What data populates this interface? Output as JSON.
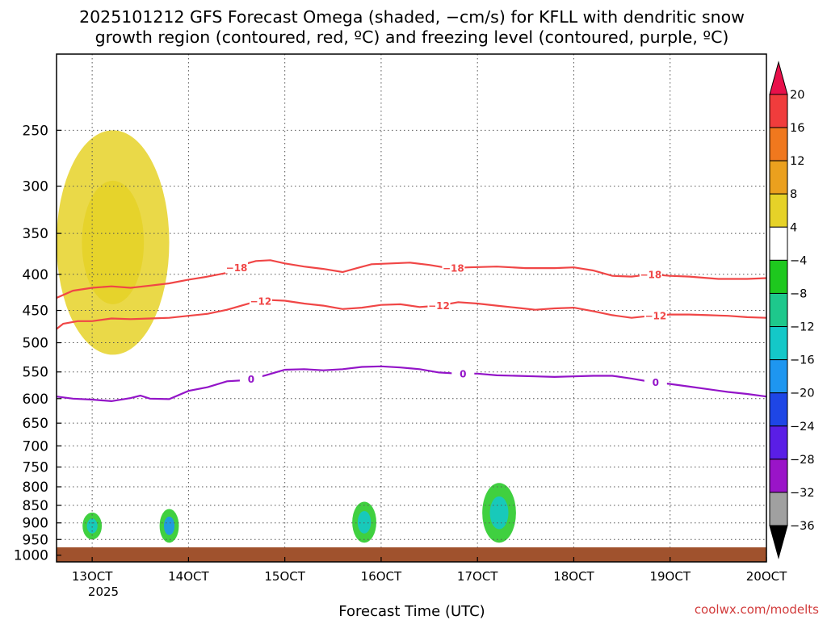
{
  "chart_data": {
    "type": "time-height",
    "title_lines": [
      "2025101212 GFS Forecast Omega (shaded, −cm/s) for KFLL with dendritic snow",
      "growth region (contoured, red, ºC) and freezing level (contoured, purple, ºC)"
    ],
    "xlabel": "Forecast Time (UTC)",
    "credit": "coolwx.com/modelts",
    "x_ticks": [
      "13OCT",
      "14OCT",
      "15OCT",
      "16OCT",
      "17OCT",
      "18OCT",
      "19OCT",
      "20OCT"
    ],
    "x_year": "2025",
    "x_range_days": [
      12.63,
      20.0
    ],
    "y_ticks": [
      250,
      300,
      350,
      400,
      450,
      500,
      550,
      600,
      650,
      700,
      750,
      800,
      850,
      900,
      950,
      1000
    ],
    "y_range_hpa": [
      195,
      1022
    ],
    "colorbar": {
      "labels": [
        "20",
        "16",
        "12",
        "8",
        "4",
        "−4",
        "−8",
        "−12",
        "−16",
        "−20",
        "−24",
        "−28",
        "−32",
        "−36"
      ],
      "colors": [
        "#e8104a",
        "#f03c3c",
        "#f0781e",
        "#eba01e",
        "#e6d228",
        "#ffffff",
        "#1ec81e",
        "#1ec88c",
        "#14c8c8",
        "#1e96f0",
        "#1e46e6",
        "#5a1ee6",
        "#9a14c8",
        "#a0a0a0",
        "#000000"
      ]
    },
    "contours": [
      {
        "name": "dgz-top",
        "level": "−18",
        "color": "#f04646",
        "points": [
          [
            12.63,
            432
          ],
          [
            12.8,
            422
          ],
          [
            13.0,
            418
          ],
          [
            13.2,
            416
          ],
          [
            13.4,
            418
          ],
          [
            13.6,
            415
          ],
          [
            13.8,
            412
          ],
          [
            14.0,
            407
          ],
          [
            14.2,
            403
          ],
          [
            14.4,
            398
          ],
          [
            14.55,
            388
          ],
          [
            14.7,
            383
          ],
          [
            14.85,
            382
          ],
          [
            15.0,
            386
          ],
          [
            15.2,
            390
          ],
          [
            15.4,
            393
          ],
          [
            15.6,
            397
          ],
          [
            15.75,
            392
          ],
          [
            15.9,
            387
          ],
          [
            16.1,
            386
          ],
          [
            16.3,
            385
          ],
          [
            16.5,
            388
          ],
          [
            16.7,
            392
          ],
          [
            16.9,
            391
          ],
          [
            17.2,
            390
          ],
          [
            17.5,
            392
          ],
          [
            17.8,
            392
          ],
          [
            18.0,
            391
          ],
          [
            18.2,
            395
          ],
          [
            18.4,
            402
          ],
          [
            18.6,
            403
          ],
          [
            18.8,
            400
          ],
          [
            19.0,
            402
          ],
          [
            19.2,
            403
          ],
          [
            19.5,
            406
          ],
          [
            19.8,
            406
          ],
          [
            20.0,
            405
          ]
        ],
        "labels": [
          [
            14.5,
            "−18"
          ],
          [
            16.75,
            "−18"
          ],
          [
            18.8,
            "−18"
          ]
        ]
      },
      {
        "name": "dgz-bottom",
        "level": "−12",
        "color": "#f04646",
        "points": [
          [
            12.63,
            478
          ],
          [
            12.7,
            470
          ],
          [
            12.85,
            466
          ],
          [
            13.0,
            466
          ],
          [
            13.2,
            462
          ],
          [
            13.4,
            463
          ],
          [
            13.6,
            462
          ],
          [
            13.8,
            461
          ],
          [
            14.0,
            458
          ],
          [
            14.2,
            455
          ],
          [
            14.4,
            449
          ],
          [
            14.55,
            443
          ],
          [
            14.7,
            437
          ],
          [
            14.85,
            435
          ],
          [
            15.0,
            436
          ],
          [
            15.2,
            440
          ],
          [
            15.4,
            443
          ],
          [
            15.6,
            448
          ],
          [
            15.8,
            446
          ],
          [
            16.0,
            442
          ],
          [
            16.2,
            441
          ],
          [
            16.4,
            445
          ],
          [
            16.6,
            443
          ],
          [
            16.8,
            438
          ],
          [
            17.0,
            440
          ],
          [
            17.2,
            443
          ],
          [
            17.4,
            446
          ],
          [
            17.6,
            449
          ],
          [
            17.8,
            447
          ],
          [
            18.0,
            446
          ],
          [
            18.2,
            451
          ],
          [
            18.4,
            457
          ],
          [
            18.6,
            461
          ],
          [
            18.8,
            458
          ],
          [
            19.0,
            456
          ],
          [
            19.2,
            456
          ],
          [
            19.4,
            457
          ],
          [
            19.6,
            458
          ],
          [
            19.8,
            460
          ],
          [
            20.0,
            461
          ]
        ],
        "labels": [
          [
            14.75,
            "−12"
          ],
          [
            16.6,
            "−12"
          ],
          [
            18.85,
            "−12"
          ]
        ]
      },
      {
        "name": "freezing-level",
        "level": "0",
        "color": "#9314c8",
        "points": [
          [
            12.63,
            596
          ],
          [
            12.8,
            600
          ],
          [
            13.0,
            602
          ],
          [
            13.2,
            605
          ],
          [
            13.4,
            599
          ],
          [
            13.5,
            594
          ],
          [
            13.6,
            600
          ],
          [
            13.8,
            601
          ],
          [
            14.0,
            585
          ],
          [
            14.2,
            578
          ],
          [
            14.4,
            567
          ],
          [
            14.6,
            565
          ],
          [
            14.8,
            556
          ],
          [
            15.0,
            546
          ],
          [
            15.2,
            545
          ],
          [
            15.4,
            547
          ],
          [
            15.6,
            545
          ],
          [
            15.8,
            541
          ],
          [
            16.0,
            540
          ],
          [
            16.2,
            542
          ],
          [
            16.4,
            545
          ],
          [
            16.6,
            551
          ],
          [
            16.8,
            553
          ],
          [
            17.0,
            553
          ],
          [
            17.2,
            556
          ],
          [
            17.4,
            557
          ],
          [
            17.6,
            558
          ],
          [
            17.8,
            559
          ],
          [
            18.0,
            558
          ],
          [
            18.2,
            557
          ],
          [
            18.4,
            557
          ],
          [
            18.6,
            562
          ],
          [
            18.8,
            568
          ],
          [
            19.0,
            572
          ],
          [
            19.2,
            577
          ],
          [
            19.4,
            582
          ],
          [
            19.6,
            587
          ],
          [
            19.8,
            591
          ],
          [
            20.0,
            596
          ]
        ],
        "labels": [
          [
            14.65,
            "0"
          ],
          [
            16.85,
            "0"
          ],
          [
            18.85,
            "0"
          ]
        ]
      }
    ],
    "shaded_regions": [
      {
        "name": "ascent-upper-left",
        "level": "4",
        "x": [
          12.63,
          13.8
        ],
        "y": [
          250,
          520
        ]
      },
      {
        "name": "descent-900-13oct",
        "level": "−12",
        "x": [
          12.9,
          13.1
        ],
        "y": [
          870,
          950
        ]
      },
      {
        "name": "descent-900-14oct",
        "level": "−16",
        "x": [
          13.7,
          13.9
        ],
        "y": [
          860,
          960
        ]
      },
      {
        "name": "descent-900-16oct",
        "level": "−12",
        "x": [
          15.7,
          15.95
        ],
        "y": [
          840,
          960
        ]
      },
      {
        "name": "descent-850-17oct",
        "level": "−12",
        "x": [
          17.05,
          17.4
        ],
        "y": [
          790,
          960
        ]
      }
    ]
  }
}
